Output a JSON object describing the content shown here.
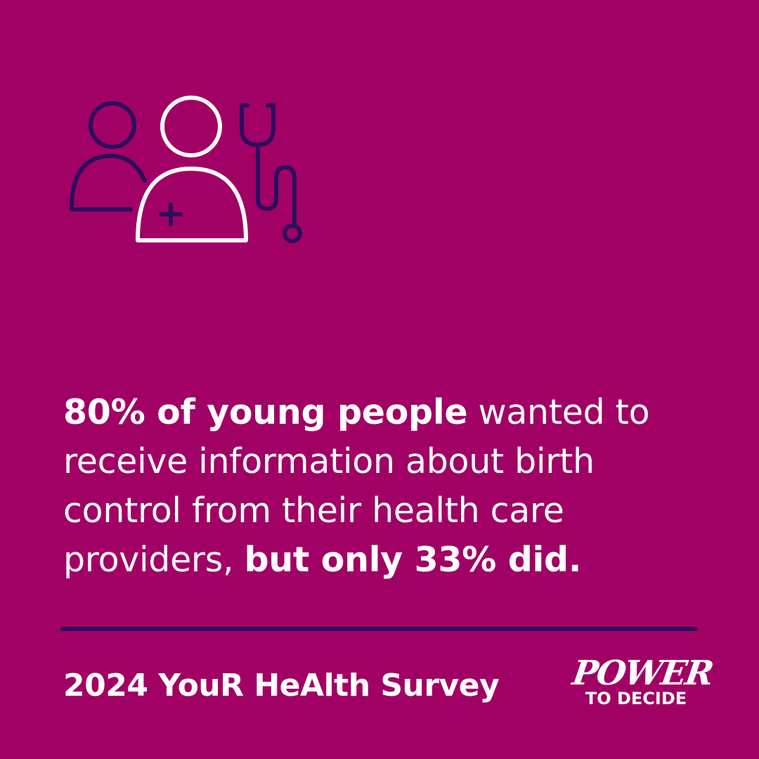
{
  "colors": {
    "background": "#A10065",
    "accent": "#2A0E5E",
    "text": "#FFFFFF"
  },
  "icon": "patient-and-doctor-with-stethoscope-icon",
  "headline": {
    "part1_bold": "80% of young people",
    "part2": " wanted to receive information about birth control from their health care providers, ",
    "part3_bold": "but only 33% did."
  },
  "footer": {
    "source": "2024 YouR HeAlth Survey"
  },
  "logo": {
    "line1": "POWER",
    "line2": "TO DECIDE"
  }
}
